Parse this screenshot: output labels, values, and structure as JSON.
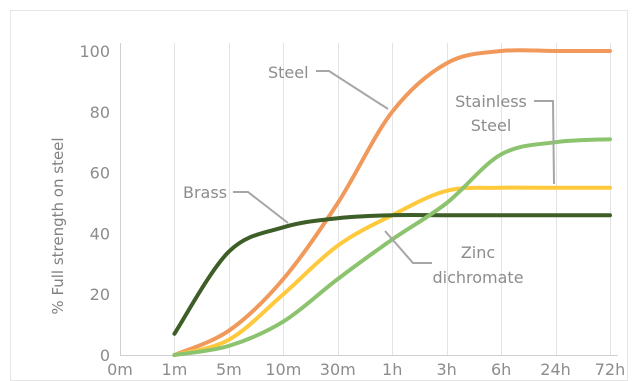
{
  "chart_data": {
    "type": "line",
    "title": "",
    "xlabel": "",
    "ylabel": "% Full strength on steel",
    "x": [
      "0m",
      "1m",
      "5m",
      "10m",
      "30m",
      "1h",
      "3h",
      "6h",
      "24h",
      "72h"
    ],
    "yticks": [
      "0",
      "20",
      "40",
      "60",
      "80",
      "100"
    ],
    "ylim": [
      0,
      100
    ],
    "grid": "vertical",
    "legend": "none",
    "series": [
      {
        "name": "Steel",
        "color": "#f0995b",
        "values": [
          null,
          0,
          8,
          25,
          50,
          80,
          96,
          100,
          100,
          100
        ]
      },
      {
        "name": "Stainless Steel",
        "color": "#ffc93c",
        "values": [
          null,
          0,
          5,
          20,
          36,
          46,
          54,
          55,
          55,
          55
        ]
      },
      {
        "name": "Brass",
        "color": "#3d5e27",
        "values": [
          null,
          7,
          34,
          42,
          45,
          46,
          46,
          46,
          46,
          46
        ]
      },
      {
        "name": "Zinc dichromate",
        "color": "#8cc36e",
        "values": [
          null,
          0,
          3,
          11,
          25,
          38,
          50,
          66,
          70,
          71
        ]
      }
    ],
    "annotations": [
      {
        "text": "Steel",
        "series": "Steel"
      },
      {
        "text": "Stainless",
        "series": "Stainless Steel"
      },
      {
        "text": "Steel",
        "series": "Stainless Steel"
      },
      {
        "text": "Brass",
        "series": "Brass"
      },
      {
        "text": "Zinc",
        "series": "Zinc dichromate"
      },
      {
        "text": "dichromate",
        "series": "Zinc dichromate"
      }
    ]
  }
}
